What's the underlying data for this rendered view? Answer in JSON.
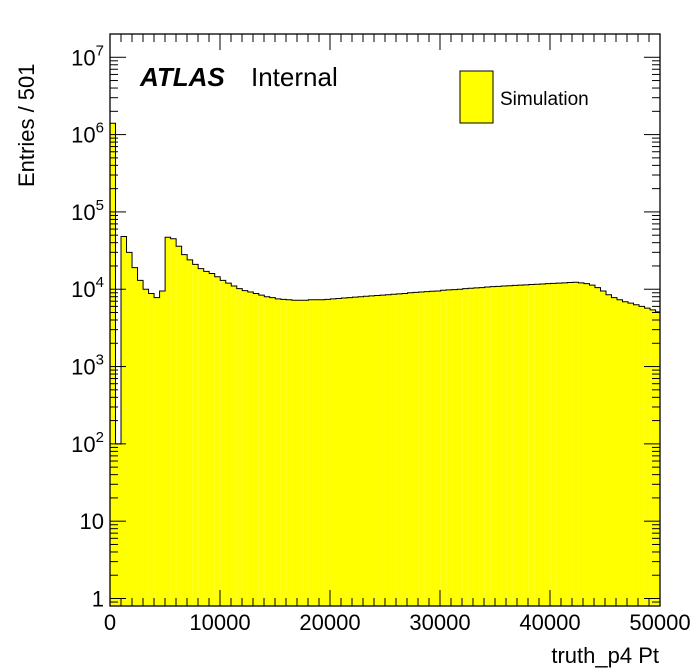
{
  "chart_data": {
    "type": "bar",
    "histtype": "step-filled",
    "fill_color": "#ffff00",
    "edge_color": "#000000",
    "xlabel": "truth_p4 Pt",
    "ylabel": "Entries / 501",
    "xlim": [
      0,
      50000
    ],
    "ylim": [
      0.8,
      20000000
    ],
    "yscale": "log",
    "grid": false,
    "legend": {
      "placement": "top-right",
      "entries": [
        "Simulation"
      ]
    },
    "annotation": {
      "brand": "ATLAS",
      "status": "Internal"
    },
    "x_ticks": [
      "0",
      "10000",
      "20000",
      "30000",
      "40000",
      "50000"
    ],
    "y_ticks": [
      {
        "base": "10",
        "exp": "7",
        "value": 10000000
      },
      {
        "base": "10",
        "exp": "6",
        "value": 1000000
      },
      {
        "base": "10",
        "exp": "5",
        "value": 100000
      },
      {
        "base": "10",
        "exp": "4",
        "value": 10000
      },
      {
        "base": "10",
        "exp": "3",
        "value": 1000
      },
      {
        "base": "10",
        "exp": "2",
        "value": 100
      },
      {
        "base": "10",
        "exp": "",
        "value": 10
      },
      {
        "base": "1",
        "exp": "",
        "value": 1
      }
    ],
    "bin_width": 501,
    "bins": [
      [
        0,
        1400000
      ],
      [
        501,
        100
      ],
      [
        1002,
        48000
      ],
      [
        1503,
        30000
      ],
      [
        2004,
        19000
      ],
      [
        2505,
        13000
      ],
      [
        3006,
        10000
      ],
      [
        3507,
        8800
      ],
      [
        4008,
        7800
      ],
      [
        4509,
        9500
      ],
      [
        5010,
        47000
      ],
      [
        5511,
        45000
      ],
      [
        6012,
        36000
      ],
      [
        6513,
        28000
      ],
      [
        7014,
        24000
      ],
      [
        7515,
        21000
      ],
      [
        8016,
        18500
      ],
      [
        8517,
        17000
      ],
      [
        9018,
        16000
      ],
      [
        9519,
        14500
      ],
      [
        10020,
        13000
      ],
      [
        10521,
        12000
      ],
      [
        11022,
        11000
      ],
      [
        11523,
        10200
      ],
      [
        12024,
        9600
      ],
      [
        12525,
        9200
      ],
      [
        13026,
        8800
      ],
      [
        13527,
        8400
      ],
      [
        14028,
        8000
      ],
      [
        14529,
        7800
      ],
      [
        15030,
        7500
      ],
      [
        15531,
        7400
      ],
      [
        16032,
        7300
      ],
      [
        16533,
        7200
      ],
      [
        17034,
        7200
      ],
      [
        17535,
        7200
      ],
      [
        18036,
        7300
      ],
      [
        18537,
        7300
      ],
      [
        19038,
        7300
      ],
      [
        19539,
        7400
      ],
      [
        20040,
        7500
      ],
      [
        20541,
        7600
      ],
      [
        21042,
        7700
      ],
      [
        21543,
        7800
      ],
      [
        22044,
        7900
      ],
      [
        22545,
        8000
      ],
      [
        23046,
        8100
      ],
      [
        23547,
        8200
      ],
      [
        24048,
        8300
      ],
      [
        24549,
        8400
      ],
      [
        25050,
        8500
      ],
      [
        25551,
        8600
      ],
      [
        26052,
        8700
      ],
      [
        26553,
        8800
      ],
      [
        27054,
        9000
      ],
      [
        27555,
        9100
      ],
      [
        28056,
        9200
      ],
      [
        28557,
        9300
      ],
      [
        29058,
        9400
      ],
      [
        29559,
        9500
      ],
      [
        30060,
        9700
      ],
      [
        30561,
        9800
      ],
      [
        31062,
        9900
      ],
      [
        31563,
        10000
      ],
      [
        32064,
        10200
      ],
      [
        32565,
        10300
      ],
      [
        33066,
        10400
      ],
      [
        33567,
        10500
      ],
      [
        34068,
        10700
      ],
      [
        34569,
        10800
      ],
      [
        35070,
        10900
      ],
      [
        35571,
        11000
      ],
      [
        36072,
        11100
      ],
      [
        36573,
        11200
      ],
      [
        37074,
        11300
      ],
      [
        37575,
        11400
      ],
      [
        38076,
        11500
      ],
      [
        38577,
        11600
      ],
      [
        39078,
        11700
      ],
      [
        39579,
        11800
      ],
      [
        40080,
        11900
      ],
      [
        40581,
        12000
      ],
      [
        41082,
        12100
      ],
      [
        41583,
        12200
      ],
      [
        42084,
        12300
      ],
      [
        42585,
        12100
      ],
      [
        43086,
        11800
      ],
      [
        43587,
        11300
      ],
      [
        44088,
        10500
      ],
      [
        44589,
        9500
      ],
      [
        45090,
        8500
      ],
      [
        45591,
        7800
      ],
      [
        46092,
        7300
      ],
      [
        46593,
        6900
      ],
      [
        47094,
        6600
      ],
      [
        47595,
        6300
      ],
      [
        48096,
        6000
      ],
      [
        48597,
        5700
      ],
      [
        49098,
        5400
      ],
      [
        49599,
        5100
      ]
    ]
  }
}
